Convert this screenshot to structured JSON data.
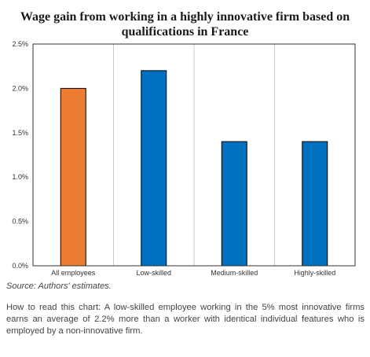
{
  "chart_data": {
    "type": "bar",
    "title": "Wage gain from working in a highly innovative firm based on qualifications in France",
    "categories": [
      "All employees",
      "Low-skilled",
      "Medium-skilled",
      "Highly-skilled"
    ],
    "values": [
      2.0,
      2.2,
      1.4,
      1.4
    ],
    "yticks": [
      "0.0%",
      "0.5%",
      "1.0%",
      "1.5%",
      "2.0%",
      "2.5%"
    ],
    "ylim": [
      0,
      2.5
    ],
    "colors": [
      "#ED7D31",
      "#0070C0",
      "#0070C0",
      "#0070C0"
    ],
    "grid": "vertical"
  },
  "source": "Source: Authors' estimates.",
  "note": "How to read this chart: A low-skilled employee working in the 5% most innovative firms earns an average of 2.2% more than a worker with identical individual features who is employed by a non-innovative firm."
}
